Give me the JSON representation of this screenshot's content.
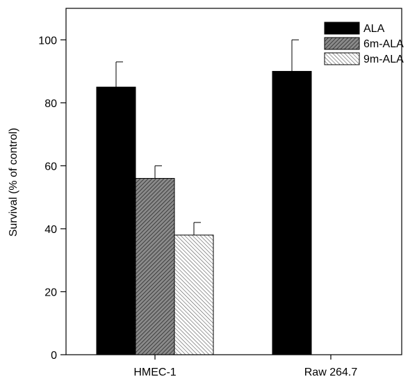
{
  "chart_data": {
    "type": "bar",
    "title": "",
    "xlabel": "",
    "ylabel": "Survival (% of control)",
    "ylim": [
      0,
      110
    ],
    "yticks": [
      0,
      20,
      40,
      60,
      80,
      100
    ],
    "categories": [
      "HMEC-1",
      "Raw 264.7"
    ],
    "series": [
      {
        "name": "ALA",
        "pattern": "solid",
        "values": [
          85,
          90
        ],
        "errors": [
          8,
          10
        ]
      },
      {
        "name": "6m-ALA",
        "pattern": "hatch-dense",
        "values": [
          56,
          null
        ],
        "errors": [
          4,
          null
        ]
      },
      {
        "name": "9m-ALA",
        "pattern": "hatch-light",
        "values": [
          38,
          null
        ],
        "errors": [
          4,
          null
        ]
      }
    ],
    "legend_position": "top-right",
    "grid": false,
    "colors": {
      "bar": "#000000",
      "background": "#ffffff"
    }
  }
}
